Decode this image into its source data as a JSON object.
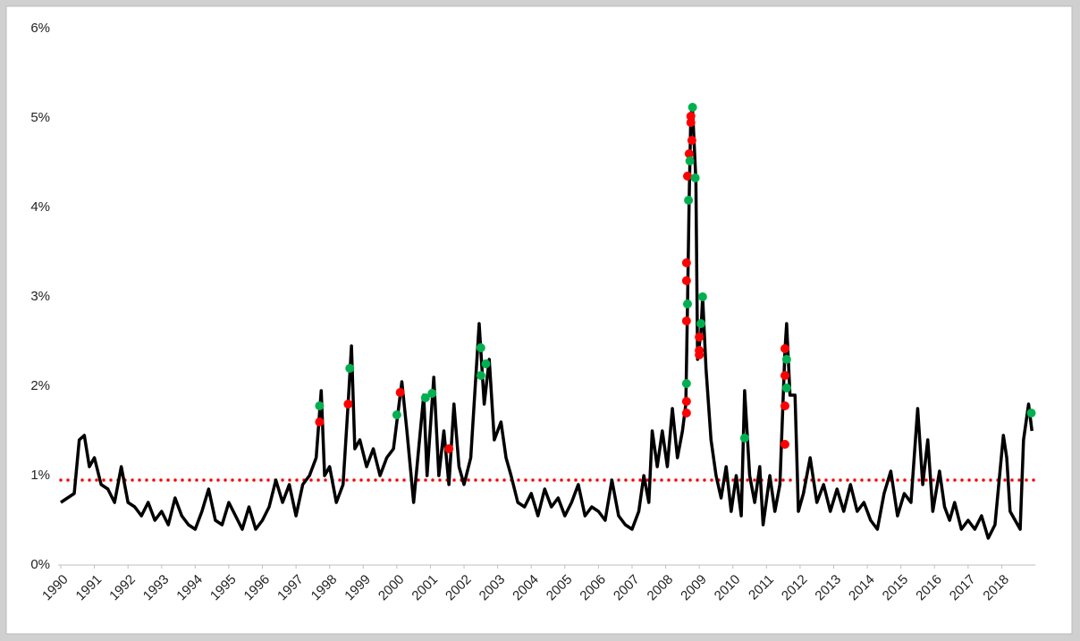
{
  "chart_data": {
    "type": "line",
    "xlim": [
      1990,
      2019
    ],
    "xticks": [
      1990,
      1991,
      1992,
      1993,
      1994,
      1995,
      1996,
      1997,
      1998,
      1999,
      2000,
      2001,
      2002,
      2003,
      2004,
      2005,
      2006,
      2007,
      2008,
      2009,
      2010,
      2011,
      2012,
      2013,
      2014,
      2015,
      2016,
      2017,
      2018
    ],
    "ylim": [
      0,
      6
    ],
    "yticks": [
      {
        "value": 0,
        "label": "0%"
      },
      {
        "value": 1,
        "label": "1%"
      },
      {
        "value": 2,
        "label": "2%"
      },
      {
        "value": 3,
        "label": "3%"
      },
      {
        "value": 4,
        "label": "4%"
      },
      {
        "value": 5,
        "label": "5%"
      },
      {
        "value": 6,
        "label": "6%"
      }
    ],
    "hline": {
      "value": 0.95,
      "color": "#ff0000",
      "style": "dotted"
    },
    "series": [
      {
        "mark": "line",
        "color": "#000000",
        "x": [
          1990.0,
          1990.2,
          1990.4,
          1990.55,
          1990.7,
          1990.85,
          1991.0,
          1991.2,
          1991.4,
          1991.6,
          1991.8,
          1992.0,
          1992.2,
          1992.4,
          1992.6,
          1992.8,
          1993.0,
          1993.2,
          1993.4,
          1993.6,
          1993.8,
          1994.0,
          1994.2,
          1994.4,
          1994.6,
          1994.8,
          1995.0,
          1995.2,
          1995.4,
          1995.6,
          1995.8,
          1996.0,
          1996.2,
          1996.4,
          1996.6,
          1996.8,
          1997.0,
          1997.2,
          1997.4,
          1997.6,
          1997.75,
          1997.85,
          1998.0,
          1998.2,
          1998.4,
          1998.55,
          1998.65,
          1998.75,
          1998.9,
          1999.1,
          1999.3,
          1999.5,
          1999.7,
          1999.9,
          2000.0,
          2000.15,
          2000.3,
          2000.5,
          2000.7,
          2000.8,
          2000.9,
          2001.1,
          2001.25,
          2001.4,
          2001.55,
          2001.7,
          2001.85,
          2002.0,
          2002.2,
          2002.45,
          2002.6,
          2002.75,
          2002.9,
          2003.1,
          2003.25,
          2003.4,
          2003.6,
          2003.8,
          2004.0,
          2004.2,
          2004.4,
          2004.6,
          2004.8,
          2005.0,
          2005.2,
          2005.4,
          2005.6,
          2005.8,
          2006.0,
          2006.2,
          2006.4,
          2006.6,
          2006.8,
          2007.0,
          2007.2,
          2007.35,
          2007.5,
          2007.6,
          2007.75,
          2007.9,
          2008.05,
          2008.2,
          2008.35,
          2008.5,
          2008.6,
          2008.65,
          2008.7,
          2008.75,
          2008.8,
          2008.85,
          2008.9,
          2008.95,
          2009.05,
          2009.1,
          2009.2,
          2009.35,
          2009.5,
          2009.65,
          2009.8,
          2009.95,
          2010.1,
          2010.25,
          2010.35,
          2010.5,
          2010.65,
          2010.8,
          2010.9,
          2011.1,
          2011.25,
          2011.4,
          2011.55,
          2011.6,
          2011.7,
          2011.85,
          2011.95,
          2012.1,
          2012.3,
          2012.5,
          2012.7,
          2012.9,
          2013.1,
          2013.3,
          2013.5,
          2013.7,
          2013.9,
          2014.1,
          2014.3,
          2014.5,
          2014.7,
          2014.9,
          2015.1,
          2015.3,
          2015.5,
          2015.65,
          2015.8,
          2015.95,
          2016.15,
          2016.3,
          2016.45,
          2016.6,
          2016.8,
          2017.0,
          2017.2,
          2017.4,
          2017.6,
          2017.8,
          2018.05,
          2018.15,
          2018.25,
          2018.4,
          2018.55,
          2018.65,
          2018.8,
          2018.9
        ],
        "values": [
          0.7,
          0.75,
          0.8,
          1.4,
          1.45,
          1.1,
          1.2,
          0.9,
          0.85,
          0.7,
          1.1,
          0.7,
          0.65,
          0.55,
          0.7,
          0.5,
          0.6,
          0.45,
          0.75,
          0.55,
          0.45,
          0.4,
          0.6,
          0.85,
          0.5,
          0.45,
          0.7,
          0.55,
          0.4,
          0.65,
          0.4,
          0.5,
          0.65,
          0.95,
          0.7,
          0.9,
          0.55,
          0.9,
          1.0,
          1.2,
          1.95,
          1.0,
          1.1,
          0.7,
          0.9,
          1.8,
          2.45,
          1.3,
          1.4,
          1.1,
          1.3,
          1.0,
          1.2,
          1.3,
          1.6,
          2.05,
          1.5,
          0.7,
          1.5,
          1.9,
          1.0,
          2.1,
          1.0,
          1.5,
          0.9,
          1.8,
          1.1,
          0.9,
          1.2,
          2.7,
          1.8,
          2.3,
          1.4,
          1.6,
          1.2,
          1.0,
          0.7,
          0.65,
          0.8,
          0.55,
          0.85,
          0.65,
          0.75,
          0.55,
          0.7,
          0.9,
          0.55,
          0.65,
          0.6,
          0.5,
          0.95,
          0.55,
          0.45,
          0.4,
          0.6,
          1.0,
          0.7,
          1.5,
          1.1,
          1.5,
          1.1,
          1.75,
          1.2,
          1.5,
          1.8,
          2.9,
          4.1,
          5.05,
          5.1,
          4.7,
          4.3,
          2.3,
          2.6,
          3.0,
          2.2,
          1.4,
          1.0,
          0.75,
          1.1,
          0.6,
          1.0,
          0.55,
          1.95,
          1.0,
          0.7,
          1.1,
          0.45,
          1.0,
          0.6,
          0.9,
          2.4,
          2.7,
          1.9,
          1.9,
          0.6,
          0.8,
          1.2,
          0.7,
          0.9,
          0.6,
          0.85,
          0.6,
          0.9,
          0.6,
          0.7,
          0.5,
          0.4,
          0.8,
          1.05,
          0.55,
          0.8,
          0.7,
          1.75,
          0.9,
          1.4,
          0.6,
          1.05,
          0.65,
          0.5,
          0.7,
          0.4,
          0.5,
          0.4,
          0.55,
          0.3,
          0.45,
          1.45,
          1.2,
          0.6,
          0.5,
          0.4,
          1.4,
          1.8,
          1.5
        ]
      },
      {
        "mark": "dot",
        "color": "#ff0000",
        "x": [
          1997.7,
          1998.55,
          2000.1,
          2001.55,
          2008.62,
          2008.62,
          2008.62,
          2008.62,
          2008.62,
          2008.65,
          2008.7,
          2008.75,
          2008.75,
          2008.78,
          2009.0,
          2009.0,
          2009.0,
          2011.55,
          2011.55,
          2011.55,
          2011.55
        ],
        "values": [
          1.6,
          1.8,
          1.93,
          1.3,
          1.7,
          1.83,
          2.73,
          3.18,
          3.38,
          4.35,
          4.6,
          4.95,
          5.02,
          4.75,
          2.35,
          2.4,
          2.55,
          1.35,
          1.78,
          2.12,
          2.42
        ]
      },
      {
        "mark": "dot",
        "color": "#00b050",
        "x": [
          1997.7,
          1998.6,
          2000.0,
          2000.85,
          2001.05,
          2002.5,
          2002.5,
          2002.65,
          2008.62,
          2008.65,
          2008.68,
          2008.72,
          2008.8,
          2008.88,
          2009.1,
          2009.05,
          2010.35,
          2011.6,
          2011.6,
          2018.88
        ],
        "values": [
          1.78,
          2.2,
          1.68,
          1.87,
          1.92,
          2.12,
          2.43,
          2.25,
          2.03,
          2.92,
          4.08,
          4.52,
          5.12,
          4.33,
          3.0,
          2.7,
          1.42,
          1.98,
          2.3,
          1.7
        ]
      }
    ]
  }
}
